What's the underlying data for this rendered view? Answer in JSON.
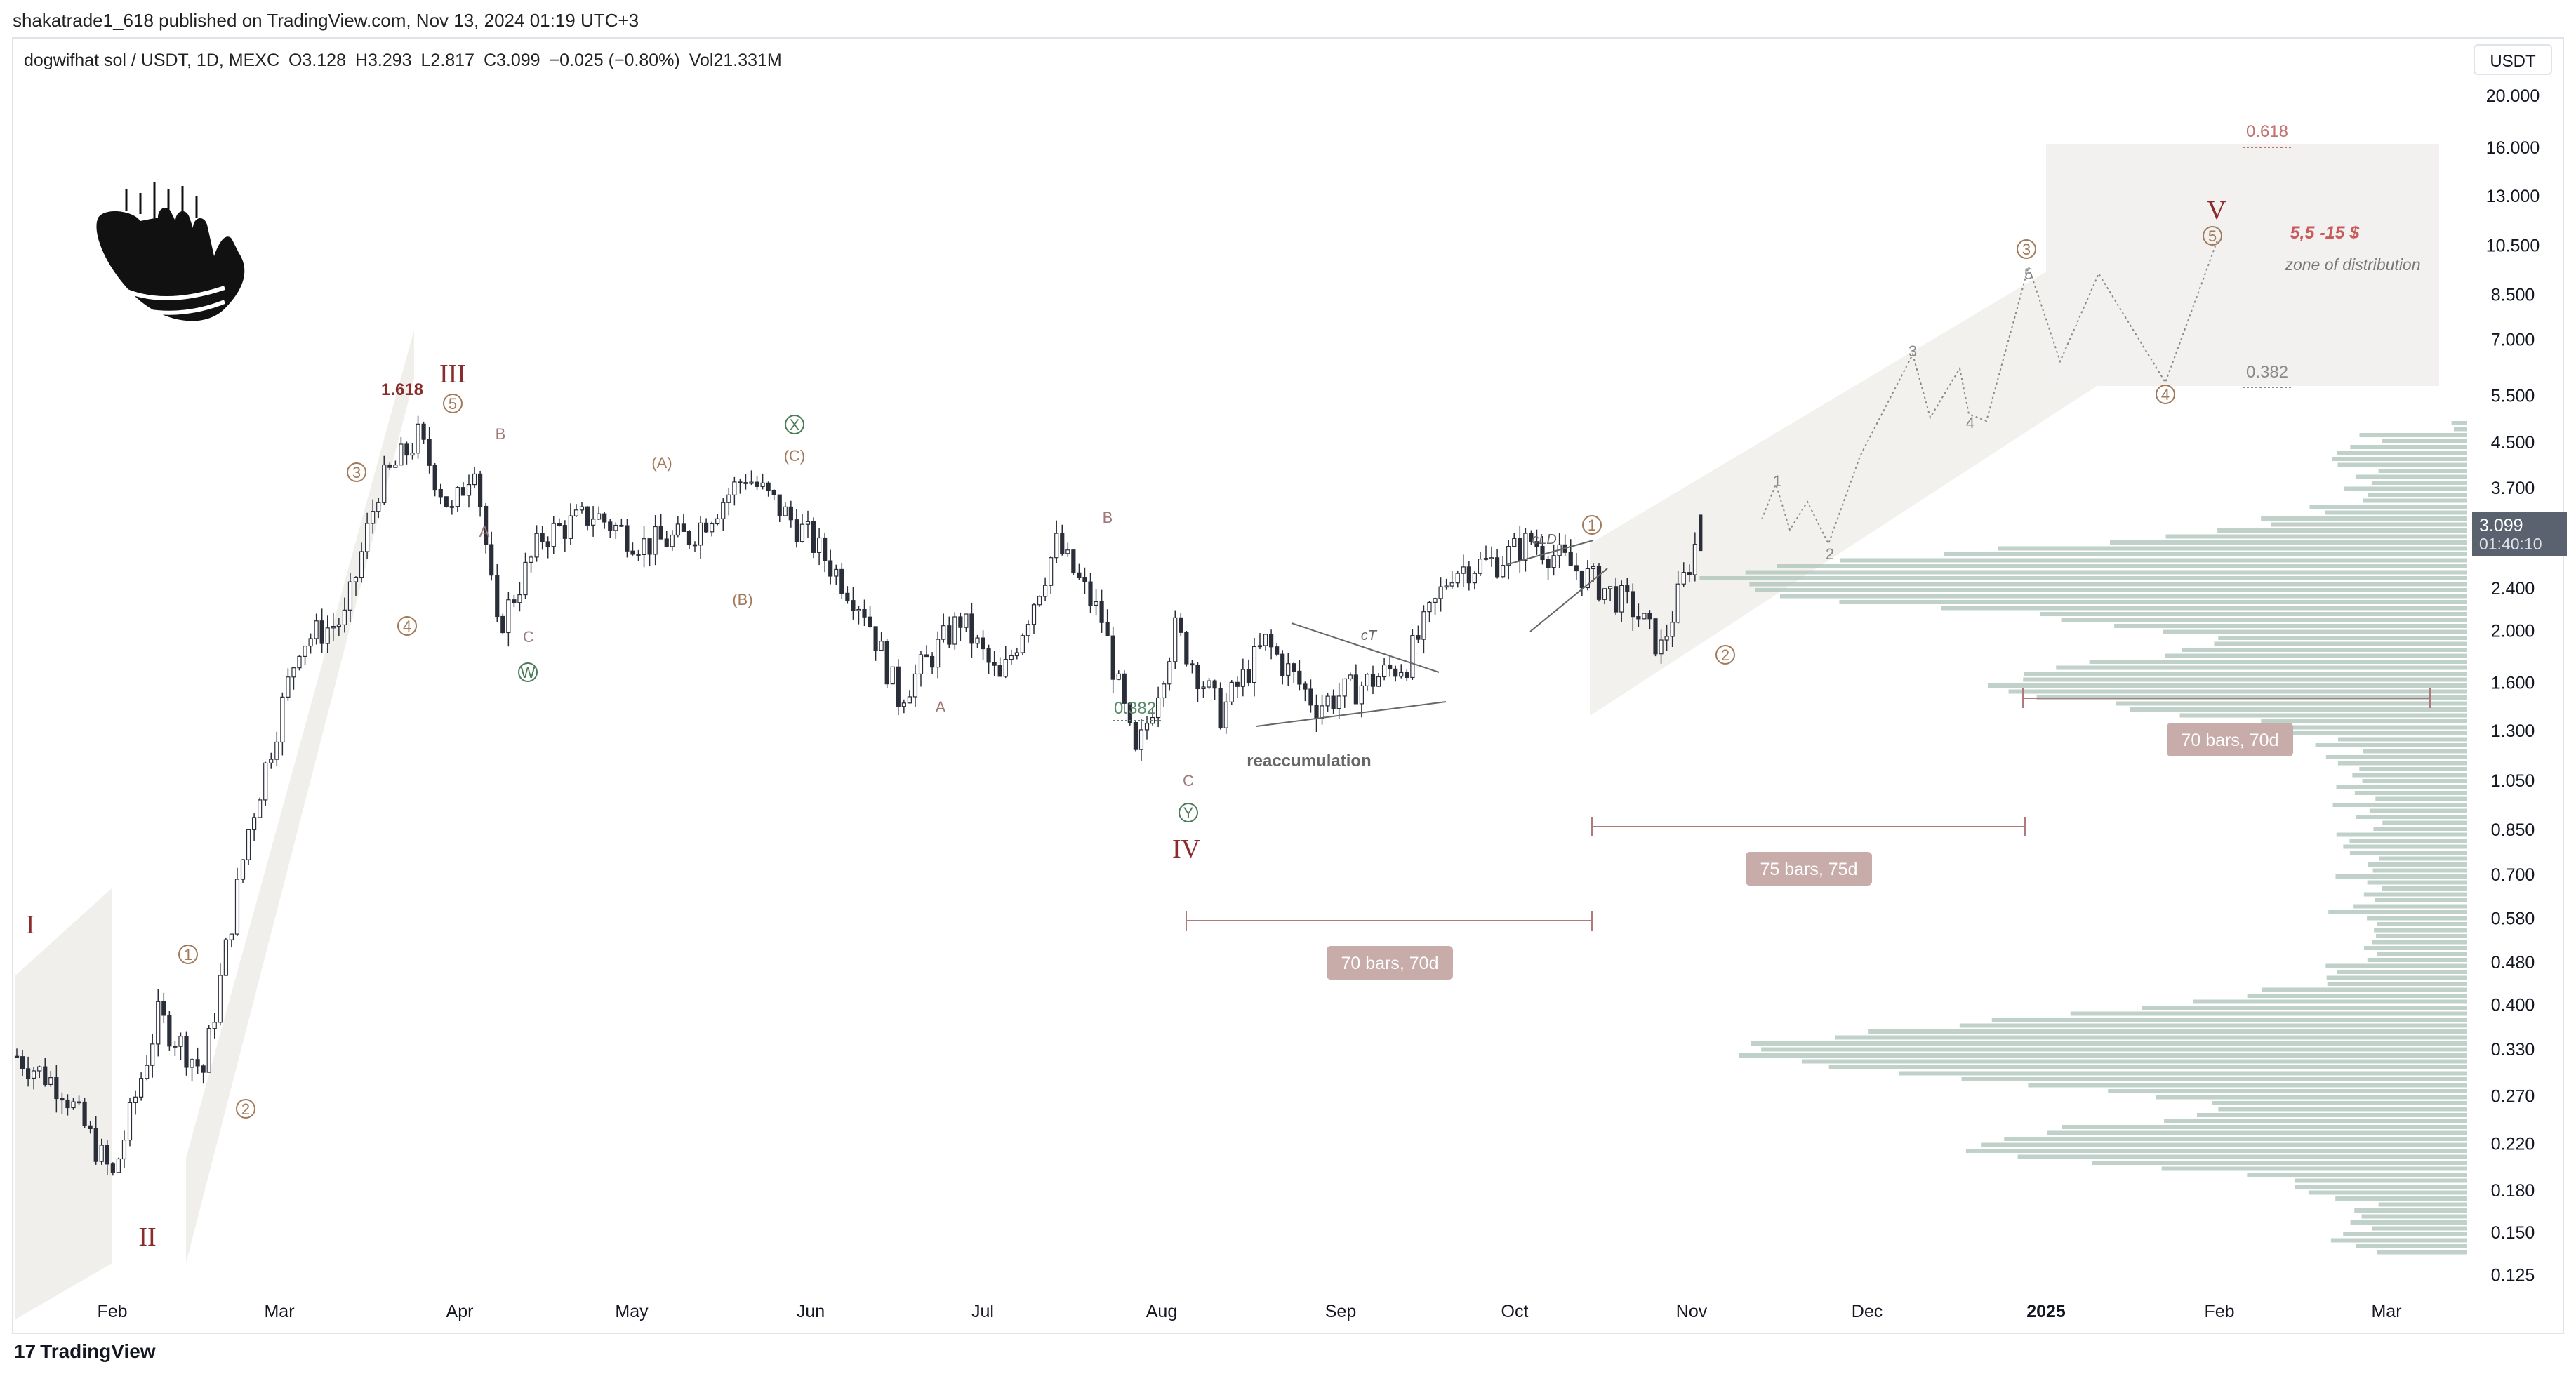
{
  "header": {
    "publish_line": "shakatrade1_618 published on TradingView.com, Nov 13, 2024 01:19 UTC+3"
  },
  "legend": {
    "symbol": "dogwifhat sol / USDT, 1D, MEXC",
    "open": "O3.128",
    "high": "H3.293",
    "low": "L2.817",
    "close": "C3.099",
    "change": "−0.025 (−0.80%)",
    "volume": "Vol21.331M"
  },
  "footer": {
    "brand": "TradingView"
  },
  "colors": {
    "candle": "#2a2e39",
    "wave_major": "#8b2c2c",
    "wave_minor": "#a07a5a",
    "wave_green": "#4a7c59",
    "volume_profile": "#9fb8ad",
    "measure": "#b08080",
    "channel": "#efece8"
  },
  "chart_data": {
    "type": "candlestick",
    "currency_label": "USDT",
    "scale": "log",
    "ylim": [
      0.12,
      21
    ],
    "y_ticks": [
      "20.000",
      "16.000",
      "13.000",
      "10.500",
      "8.500",
      "7.000",
      "5.500",
      "4.500",
      "3.700",
      "2.400",
      "2.000",
      "1.600",
      "1.300",
      "1.050",
      "0.850",
      "0.700",
      "0.580",
      "0.480",
      "0.400",
      "0.330",
      "0.270",
      "0.220",
      "0.180",
      "0.150",
      "0.125"
    ],
    "x_ticks": [
      "Feb",
      "Mar",
      "Apr",
      "May",
      "Jun",
      "Jul",
      "Aug",
      "Sep",
      "Oct",
      "Nov",
      "Dec",
      "2025",
      "Feb",
      "Mar"
    ],
    "last_price": "3.099",
    "countdown": "01:40:10",
    "close_series": [
      {
        "date": "2024-01-20",
        "close": 0.32
      },
      {
        "date": "2024-01-28",
        "close": 0.28
      },
      {
        "date": "2024-02-06",
        "close": 0.19
      },
      {
        "date": "2024-02-14",
        "close": 0.38
      },
      {
        "date": "2024-02-22",
        "close": 0.3
      },
      {
        "date": "2024-03-01",
        "close": 0.85
      },
      {
        "date": "2024-03-10",
        "close": 1.9
      },
      {
        "date": "2024-03-18",
        "close": 2.1
      },
      {
        "date": "2024-03-24",
        "close": 3.7
      },
      {
        "date": "2024-03-31",
        "close": 4.6
      },
      {
        "date": "2024-04-06",
        "close": 3.3
      },
      {
        "date": "2024-04-10",
        "close": 4.2
      },
      {
        "date": "2024-04-14",
        "close": 2.0
      },
      {
        "date": "2024-04-22",
        "close": 3.0
      },
      {
        "date": "2024-05-01",
        "close": 3.3
      },
      {
        "date": "2024-05-10",
        "close": 2.9
      },
      {
        "date": "2024-05-18",
        "close": 3.0
      },
      {
        "date": "2024-05-28",
        "close": 3.9
      },
      {
        "date": "2024-06-08",
        "close": 3.0
      },
      {
        "date": "2024-06-18",
        "close": 2.2
      },
      {
        "date": "2024-06-24",
        "close": 1.5
      },
      {
        "date": "2024-07-05",
        "close": 2.1
      },
      {
        "date": "2024-07-12",
        "close": 1.6
      },
      {
        "date": "2024-07-22",
        "close": 2.9
      },
      {
        "date": "2024-07-30",
        "close": 2.1
      },
      {
        "date": "2024-08-05",
        "close": 1.15
      },
      {
        "date": "2024-08-12",
        "close": 2.0
      },
      {
        "date": "2024-08-20",
        "close": 1.4
      },
      {
        "date": "2024-08-28",
        "close": 1.9
      },
      {
        "date": "2024-09-06",
        "close": 1.45
      },
      {
        "date": "2024-09-15",
        "close": 1.6
      },
      {
        "date": "2024-09-22",
        "close": 1.75
      },
      {
        "date": "2024-09-30",
        "close": 2.6
      },
      {
        "date": "2024-10-08",
        "close": 2.7
      },
      {
        "date": "2024-10-14",
        "close": 2.95
      },
      {
        "date": "2024-10-22",
        "close": 2.6
      },
      {
        "date": "2024-11-01",
        "close": 2.2
      },
      {
        "date": "2024-11-06",
        "close": 1.85
      },
      {
        "date": "2024-11-13",
        "close": 3.099
      }
    ],
    "projection_path": [
      {
        "label": "1",
        "price": 3.6
      },
      {
        "label": "2",
        "price": 2.6
      },
      {
        "label": "3",
        "price": 6.5
      },
      {
        "label": "4",
        "price": 4.5
      },
      {
        "label": "5",
        "price": 9.0
      },
      {
        "label": "4",
        "price": 5.5
      },
      {
        "label": "5",
        "price": 10.5
      }
    ],
    "wave_labels": {
      "major": [
        "I",
        "II",
        "III",
        "IV",
        "V"
      ],
      "circled": [
        "1",
        "2",
        "3",
        "4",
        "5",
        "W",
        "X",
        "Y"
      ],
      "letters": [
        "A",
        "B",
        "C",
        "(A)",
        "(B)",
        "(C)"
      ]
    },
    "fib_labels": [
      "1.618",
      "0.382",
      "0.618",
      "0.382"
    ],
    "annotations": {
      "target": "5,5 -15 $",
      "zone": "zone of distribution",
      "reaccumulation": "reaccumulation",
      "triangle": "cT",
      "diagonal": "cLD"
    },
    "measures": [
      "70 bars, 70d",
      "75 bars, 75d",
      "70 bars, 70d"
    ]
  }
}
